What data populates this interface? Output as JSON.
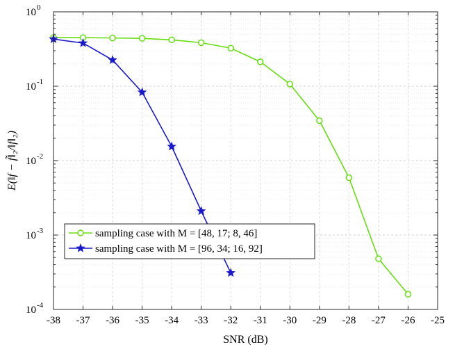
{
  "chart_data": {
    "type": "line",
    "xlabel": "SNR (dB)",
    "ylabel": "E(‖f − f̃‖₂/‖f‖₂)",
    "x_ticks": [
      "-38",
      "-37",
      "-36",
      "-35",
      "-34",
      "-33",
      "-32",
      "-31",
      "-30",
      "-29",
      "-28",
      "-27",
      "-26",
      "-25"
    ],
    "y_ticks": [
      {
        "base": "10",
        "exp": "-4"
      },
      {
        "base": "10",
        "exp": "-3"
      },
      {
        "base": "10",
        "exp": "-2"
      },
      {
        "base": "10",
        "exp": "-1"
      },
      {
        "base": "10",
        "exp": "0"
      }
    ],
    "xlim": [
      -38,
      -25
    ],
    "ylim": [
      0.0001,
      1
    ],
    "yscale": "log",
    "grid": true,
    "legend_position": "lower-left",
    "series": [
      {
        "name": "sampling case with M = [48, 17; 8, 46]",
        "color": "#66dd11",
        "marker": "circle",
        "x": [
          -38,
          -37,
          -36,
          -35,
          -34,
          -33,
          -32,
          -31,
          -30,
          -29,
          -28,
          -27,
          -26
        ],
        "y": [
          0.45,
          0.45,
          0.445,
          0.44,
          0.42,
          0.385,
          0.325,
          0.213,
          0.107,
          0.0345,
          0.0059,
          0.00048,
          0.00016
        ]
      },
      {
        "name": "sampling case with M = [96, 34; 16, 92]",
        "color": "#1a1acc",
        "marker": "star",
        "x": [
          -38,
          -37,
          -36,
          -35,
          -34,
          -33,
          -32
        ],
        "y": [
          0.43,
          0.38,
          0.225,
          0.083,
          0.0155,
          0.0021,
          0.00031
        ]
      }
    ]
  }
}
